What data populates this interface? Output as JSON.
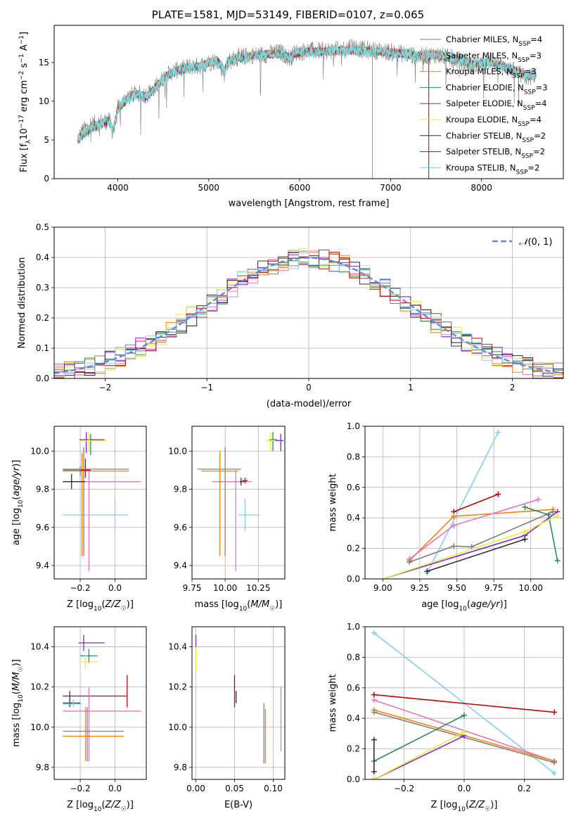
{
  "page_title": "PLATE=1581, MJD=53149, FIBERID=0107, z=0.065",
  "models": [
    {
      "name": "Chabrier MILES",
      "nssp": "4",
      "color": "#7f7f7f"
    },
    {
      "name": "Salpeter MILES",
      "nssp": "3",
      "color": "#e377c2"
    },
    {
      "name": "Kroupa MILES",
      "nssp": "3",
      "color": "#ff7f0e"
    },
    {
      "name": "Chabrier ELODIE",
      "nssp": "3",
      "color": "#2e8b57"
    },
    {
      "name": "Salpeter ELODIE",
      "nssp": "4",
      "color": "#8b22d4"
    },
    {
      "name": "Kroupa ELODIE",
      "nssp": "4",
      "color": "#e0f040"
    },
    {
      "name": "Chabrier STELIB",
      "nssp": "2",
      "color": "#2f2f2f"
    },
    {
      "name": "Salpeter STELIB",
      "nssp": "2",
      "color": "#c00000"
    },
    {
      "name": "Kroupa STELIB",
      "nssp": "2",
      "color": "#87ceeb"
    }
  ],
  "chart_data": [
    {
      "id": "spectrum",
      "type": "line",
      "title": "PLATE=1581, MJD=53149, FIBERID=0107, z=0.065",
      "xlabel": "wavelength [Angstrom, rest frame]",
      "ylabel": "Flux [f_λ10^-17 erg cm^-2 s^-1 A^-1]",
      "xlim": [
        3300,
        8900
      ],
      "ylim": [
        0,
        19.8
      ],
      "xticks": [
        4000,
        5000,
        6000,
        7000,
        8000
      ],
      "yticks": [
        0,
        5,
        10,
        15
      ],
      "grid": false,
      "legend": "top-right",
      "data_color": "#7f7f7f",
      "model_color": "#7fd9d9",
      "data_points": [
        [
          3560,
          5.0
        ],
        [
          3600,
          6.0
        ],
        [
          3700,
          7.0
        ],
        [
          3800,
          7.2
        ],
        [
          3900,
          7.5
        ],
        [
          3950,
          6.0
        ],
        [
          4000,
          9.0
        ],
        [
          4100,
          10.5
        ],
        [
          4200,
          11.0
        ],
        [
          4300,
          10.8
        ],
        [
          4400,
          11.5
        ],
        [
          4500,
          13.0
        ],
        [
          4600,
          13.8
        ],
        [
          4700,
          14.2
        ],
        [
          4800,
          14.5
        ],
        [
          4900,
          14.5
        ],
        [
          5000,
          15.0
        ],
        [
          5100,
          15.3
        ],
        [
          5175,
          13.5
        ],
        [
          5200,
          15.0
        ],
        [
          5300,
          15.6
        ],
        [
          5400,
          15.8
        ],
        [
          5500,
          16.0
        ],
        [
          5600,
          16.0
        ],
        [
          5700,
          16.2
        ],
        [
          5800,
          16.3
        ],
        [
          5890,
          15.5
        ],
        [
          5950,
          16.3
        ],
        [
          6100,
          16.5
        ],
        [
          6300,
          16.5
        ],
        [
          6500,
          16.7
        ],
        [
          6563,
          17.2
        ],
        [
          6700,
          16.6
        ],
        [
          6900,
          16.5
        ],
        [
          7100,
          16.2
        ],
        [
          7300,
          15.8
        ],
        [
          7500,
          16.0
        ],
        [
          7700,
          15.5
        ],
        [
          7900,
          14.5
        ],
        [
          8100,
          15.2
        ],
        [
          8300,
          14.2
        ],
        [
          8500,
          13.0
        ],
        [
          8600,
          13.5
        ]
      ],
      "model_points": [
        [
          3560,
          5.0
        ],
        [
          3600,
          5.5
        ],
        [
          3700,
          6.5
        ],
        [
          3800,
          7.0
        ],
        [
          3900,
          7.5
        ],
        [
          3950,
          6.2
        ],
        [
          4000,
          9.0
        ],
        [
          4100,
          10.3
        ],
        [
          4200,
          11.0
        ],
        [
          4300,
          10.6
        ],
        [
          4400,
          11.5
        ],
        [
          4500,
          13.0
        ],
        [
          4600,
          13.7
        ],
        [
          4700,
          14.1
        ],
        [
          4800,
          14.4
        ],
        [
          4900,
          14.5
        ],
        [
          5000,
          15.0
        ],
        [
          5100,
          15.2
        ],
        [
          5175,
          13.8
        ],
        [
          5200,
          15.0
        ],
        [
          5300,
          15.5
        ],
        [
          5400,
          15.7
        ],
        [
          5500,
          15.9
        ],
        [
          5600,
          16.0
        ],
        [
          5700,
          16.1
        ],
        [
          5800,
          16.2
        ],
        [
          5890,
          15.6
        ],
        [
          5950,
          16.2
        ],
        [
          6100,
          16.4
        ],
        [
          6300,
          16.4
        ],
        [
          6500,
          16.6
        ],
        [
          6700,
          16.5
        ],
        [
          6900,
          16.4
        ],
        [
          7100,
          16.2
        ],
        [
          7300,
          15.9
        ],
        [
          7500,
          16.0
        ],
        [
          7700,
          15.5
        ],
        [
          7900,
          14.8
        ],
        [
          8100,
          15.0
        ],
        [
          8300,
          14.3
        ],
        [
          8500,
          13.2
        ],
        [
          8600,
          13.5
        ]
      ]
    },
    {
      "id": "residuals",
      "type": "bar",
      "xlabel": "(data-model)/error",
      "ylabel": "Normed distribution",
      "xlim": [
        -2.5,
        2.5
      ],
      "ylim": [
        0,
        0.5
      ],
      "xticks": [
        -2,
        -1,
        0,
        1,
        2
      ],
      "yticks": [
        0.0,
        0.1,
        0.2,
        0.3,
        0.4,
        0.5
      ],
      "grid": true,
      "legend": "top-right",
      "legend_label": "N(0,1)",
      "normal_curve": {
        "mu": 0,
        "sigma": 1,
        "color": "#5b8ed6"
      },
      "bin_width": 0.1
    },
    {
      "id": "age_vs_Z",
      "type": "scatter",
      "xlabel": "Z [log10(Z/Z☉)]",
      "ylabel": "age  [log10(age/yr)]",
      "xlim": [
        -0.35,
        0.18
      ],
      "ylim": [
        9.33,
        10.13
      ],
      "xticks": [
        -0.2,
        0.0
      ],
      "yticks": [
        9.4,
        9.6,
        9.8,
        10.0
      ],
      "grid": true,
      "points": [
        {
          "m": 8,
          "x": 0.0,
          "xlo": -0.3,
          "xhi": 0.075,
          "y": 9.665,
          "ylo": 9.58,
          "yhi": 9.75
        },
        {
          "m": 0,
          "x": -0.18,
          "xlo": -0.3,
          "xhi": -0.14,
          "y": 9.9,
          "ylo": 9.45,
          "yhi": 10.02
        },
        {
          "m": 1,
          "x": -0.15,
          "xlo": -0.3,
          "xhi": 0.15,
          "y": 9.84,
          "ylo": 9.37,
          "yhi": 9.9
        },
        {
          "m": 2,
          "x": -0.19,
          "xlo": -0.3,
          "xhi": 0.08,
          "y": 9.895,
          "ylo": 9.45,
          "yhi": 9.99
        },
        {
          "m": 3,
          "x": -0.14,
          "xlo": -0.2,
          "xhi": -0.07,
          "y": 10.055,
          "ylo": 9.98,
          "yhi": 10.09
        },
        {
          "m": 4,
          "x": -0.165,
          "xlo": -0.205,
          "xhi": -0.06,
          "y": 10.06,
          "ylo": 9.99,
          "yhi": 10.1
        },
        {
          "m": 5,
          "x": -0.15,
          "xlo": -0.2,
          "xhi": -0.05,
          "y": 10.055,
          "ylo": 10.0,
          "yhi": 10.1
        },
        {
          "m": 6,
          "x": -0.25,
          "xlo": -0.3,
          "xhi": -0.17,
          "y": 9.84,
          "ylo": 9.8,
          "yhi": 9.88
        },
        {
          "m": 7,
          "x": -0.17,
          "xlo": -0.2,
          "xhi": -0.14,
          "y": 9.9,
          "ylo": 9.86,
          "yhi": 9.96
        },
        {
          "m": 0,
          "x": -0.2,
          "xlo": -0.3,
          "xhi": 0.08,
          "y": 9.905,
          "ylo": 9.87,
          "yhi": 9.92
        }
      ]
    },
    {
      "id": "age_vs_mass",
      "type": "scatter",
      "xlabel": "mass [log10(M/M☉)]",
      "ylabel": "",
      "xlim": [
        9.75,
        10.45
      ],
      "ylim": [
        9.33,
        10.13
      ],
      "xticks": [
        9.75,
        10.0,
        10.25
      ],
      "yticks": [
        9.4,
        9.6,
        9.8,
        10.0
      ],
      "grid": true,
      "points": [
        {
          "m": 8,
          "x": 10.15,
          "xlo": 10.1,
          "xhi": 10.26,
          "y": 9.665,
          "ylo": 9.58,
          "yhi": 9.75
        },
        {
          "m": 0,
          "x": 10.0,
          "xlo": 9.79,
          "xhi": 10.12,
          "y": 9.905,
          "ylo": 9.45,
          "yhi": 10.02
        },
        {
          "m": 1,
          "x": 10.08,
          "xlo": 9.9,
          "xhi": 10.2,
          "y": 9.84,
          "ylo": 9.37,
          "yhi": 9.9
        },
        {
          "m": 2,
          "x": 9.96,
          "xlo": 9.82,
          "xhi": 10.1,
          "y": 9.895,
          "ylo": 9.45,
          "yhi": 10.0
        },
        {
          "m": 3,
          "x": 10.36,
          "xlo": 10.33,
          "xhi": 10.39,
          "y": 10.06,
          "ylo": 10.0,
          "yhi": 10.1
        },
        {
          "m": 4,
          "x": 10.42,
          "xlo": 10.37,
          "xhi": 10.44,
          "y": 10.055,
          "ylo": 10.0,
          "yhi": 10.09
        },
        {
          "m": 5,
          "x": 10.34,
          "xlo": 10.31,
          "xhi": 10.38,
          "y": 10.055,
          "ylo": 10.0,
          "yhi": 10.1
        },
        {
          "m": 6,
          "x": 10.12,
          "xlo": 10.11,
          "xhi": 10.14,
          "y": 9.84,
          "ylo": 9.82,
          "yhi": 9.86
        },
        {
          "m": 7,
          "x": 10.15,
          "xlo": 10.13,
          "xhi": 10.17,
          "y": 9.845,
          "ylo": 9.83,
          "yhi": 9.86
        }
      ]
    },
    {
      "id": "mass_weight_vs_age",
      "type": "line",
      "xlabel": "age  [log10(age/yr)]",
      "ylabel": "mass weight",
      "xlim": [
        8.88,
        10.22
      ],
      "ylim": [
        0,
        1
      ],
      "xticks": [
        9.0,
        9.25,
        9.5,
        9.75,
        10.0
      ],
      "yticks": [
        0.0,
        0.2,
        0.4,
        0.6,
        0.8,
        1.0
      ],
      "grid": true,
      "series": [
        {
          "m": 8,
          "points": [
            [
              9.3,
              0.04
            ],
            [
              9.78,
              0.96
            ]
          ]
        },
        {
          "m": 7,
          "points": [
            [
              9.48,
              0.44
            ],
            [
              9.78,
              0.555
            ]
          ]
        },
        {
          "m": 2,
          "points": [
            [
              9.18,
              0.12
            ],
            [
              9.48,
              0.41
            ],
            [
              10.15,
              0.455
            ]
          ]
        },
        {
          "m": 1,
          "points": [
            [
              9.18,
              0.13
            ],
            [
              9.48,
              0.35
            ],
            [
              10.05,
              0.52
            ]
          ]
        },
        {
          "m": 0,
          "points": [
            [
              9.18,
              0.11
            ],
            [
              9.48,
              0.215
            ],
            [
              9.6,
              0.21
            ],
            [
              10.15,
              0.44
            ]
          ]
        },
        {
          "m": 3,
          "points": [
            [
              9.96,
              0.47
            ],
            [
              10.12,
              0.42
            ],
            [
              10.18,
              0.12
            ]
          ]
        },
        {
          "m": 4,
          "points": [
            [
              9.0,
              0.0
            ],
            [
              9.96,
              0.285
            ],
            [
              10.18,
              0.44
            ]
          ]
        },
        {
          "m": 5,
          "points": [
            [
              9.0,
              0.0
            ],
            [
              9.96,
              0.31
            ],
            [
              10.18,
              0.415
            ]
          ]
        },
        {
          "m": 6,
          "points": [
            [
              9.3,
              0.05
            ],
            [
              9.96,
              0.26
            ]
          ]
        }
      ]
    },
    {
      "id": "mass_vs_Z",
      "type": "scatter",
      "xlabel": "Z [log10(Z/Z☉)]",
      "ylabel": "mass [log10(M/M☉)]",
      "xlim": [
        -0.35,
        0.18
      ],
      "ylim": [
        9.74,
        10.5
      ],
      "xticks": [
        -0.2,
        0.0
      ],
      "yticks": [
        9.8,
        10.0,
        10.2,
        10.4
      ],
      "grid": true,
      "points": [
        {
          "m": 7,
          "x": 0.07,
          "xlo": -0.3,
          "xhi": 0.07,
          "y": 10.155,
          "ylo": 10.1,
          "yhi": 10.26
        },
        {
          "m": 1,
          "x": -0.15,
          "xlo": -0.3,
          "xhi": 0.15,
          "y": 10.08,
          "ylo": 9.83,
          "yhi": 10.2
        },
        {
          "m": 0,
          "x": -0.16,
          "xlo": -0.3,
          "xhi": 0.05,
          "y": 9.98,
          "ylo": 9.83,
          "yhi": 10.1
        },
        {
          "m": 2,
          "x": -0.17,
          "xlo": -0.3,
          "xhi": 0.05,
          "y": 9.955,
          "ylo": 9.83,
          "yhi": 10.1
        },
        {
          "m": 3,
          "x": -0.15,
          "xlo": -0.2,
          "xhi": -0.1,
          "y": 10.355,
          "ylo": 10.32,
          "yhi": 10.39
        },
        {
          "m": 4,
          "x": -0.18,
          "xlo": -0.21,
          "xhi": -0.06,
          "y": 10.42,
          "ylo": 10.38,
          "yhi": 10.46
        },
        {
          "m": 5,
          "x": -0.17,
          "xlo": -0.2,
          "xhi": -0.1,
          "y": 10.325,
          "ylo": 10.29,
          "yhi": 10.36
        },
        {
          "m": 6,
          "x": -0.26,
          "xlo": -0.3,
          "xhi": -0.2,
          "y": 10.12,
          "ylo": 10.1,
          "yhi": 10.18
        },
        {
          "m": 8,
          "x": -0.24,
          "xlo": -0.3,
          "xhi": -0.19,
          "y": 10.115,
          "ylo": 10.1,
          "yhi": 10.14
        }
      ]
    },
    {
      "id": "mass_vs_EBV",
      "type": "scatter",
      "xlabel": "E(B-V)",
      "ylabel": "",
      "xlim": [
        -0.005,
        0.115
      ],
      "ylim": [
        9.74,
        10.5
      ],
      "xticks": [
        0.0,
        0.05,
        0.1
      ],
      "yticks": [
        9.8,
        10.0,
        10.2,
        10.4
      ],
      "grid": true,
      "points": [
        {
          "m": 7,
          "x": 0.05,
          "y": 10.15,
          "ylo": 10.1,
          "yhi": 10.26
        },
        {
          "m": 6,
          "x": 0.052,
          "y": 10.15,
          "ylo": 10.12,
          "yhi": 10.18
        },
        {
          "m": 4,
          "x": 0.0,
          "y": 10.42,
          "ylo": 10.38,
          "yhi": 10.46
        },
        {
          "m": 5,
          "x": 0.0,
          "y": 10.33,
          "ylo": 10.28,
          "yhi": 10.4
        },
        {
          "m": 0,
          "x": 0.088,
          "y": 9.98,
          "ylo": 9.82,
          "yhi": 10.12
        },
        {
          "m": 2,
          "x": 0.09,
          "y": 9.96,
          "ylo": 9.82,
          "yhi": 10.09
        },
        {
          "m": 1,
          "x": 0.11,
          "y": 10.05,
          "ylo": 9.88,
          "yhi": 10.2
        }
      ]
    },
    {
      "id": "mass_weight_vs_Z",
      "type": "line",
      "xlabel": "Z [log10(Z/Z☉)]",
      "ylabel": "mass weight",
      "xlim": [
        -0.33,
        0.33
      ],
      "ylim": [
        0,
        1
      ],
      "xticks": [
        -0.2,
        0.0,
        0.2
      ],
      "yticks": [
        0.0,
        0.2,
        0.4,
        0.6,
        0.8,
        1.0
      ],
      "grid": true,
      "series": [
        {
          "m": 8,
          "points": [
            [
              -0.3,
              0.96
            ],
            [
              0.3,
              0.04
            ]
          ]
        },
        {
          "m": 7,
          "points": [
            [
              -0.3,
              0.555
            ],
            [
              0.3,
              0.44
            ]
          ]
        },
        {
          "m": 1,
          "points": [
            [
              -0.3,
              0.52
            ],
            [
              0.3,
              0.12
            ]
          ]
        },
        {
          "m": 2,
          "points": [
            [
              -0.3,
              0.455
            ],
            [
              0.3,
              0.12
            ]
          ]
        },
        {
          "m": 0,
          "points": [
            [
              -0.3,
              0.44
            ],
            [
              0.3,
              0.11
            ]
          ]
        },
        {
          "m": 4,
          "points": [
            [
              -0.3,
              0.0
            ],
            [
              0.0,
              0.285
            ]
          ]
        },
        {
          "m": 5,
          "points": [
            [
              -0.3,
              0.0
            ],
            [
              0.0,
              0.31
            ]
          ]
        },
        {
          "m": 3,
          "points": [
            [
              -0.3,
              0.12
            ],
            [
              0.0,
              0.42
            ]
          ]
        },
        {
          "m": 6,
          "points": [
            [
              -0.3,
              0.26
            ],
            [
              -0.3,
              0.05
            ]
          ]
        }
      ]
    }
  ]
}
